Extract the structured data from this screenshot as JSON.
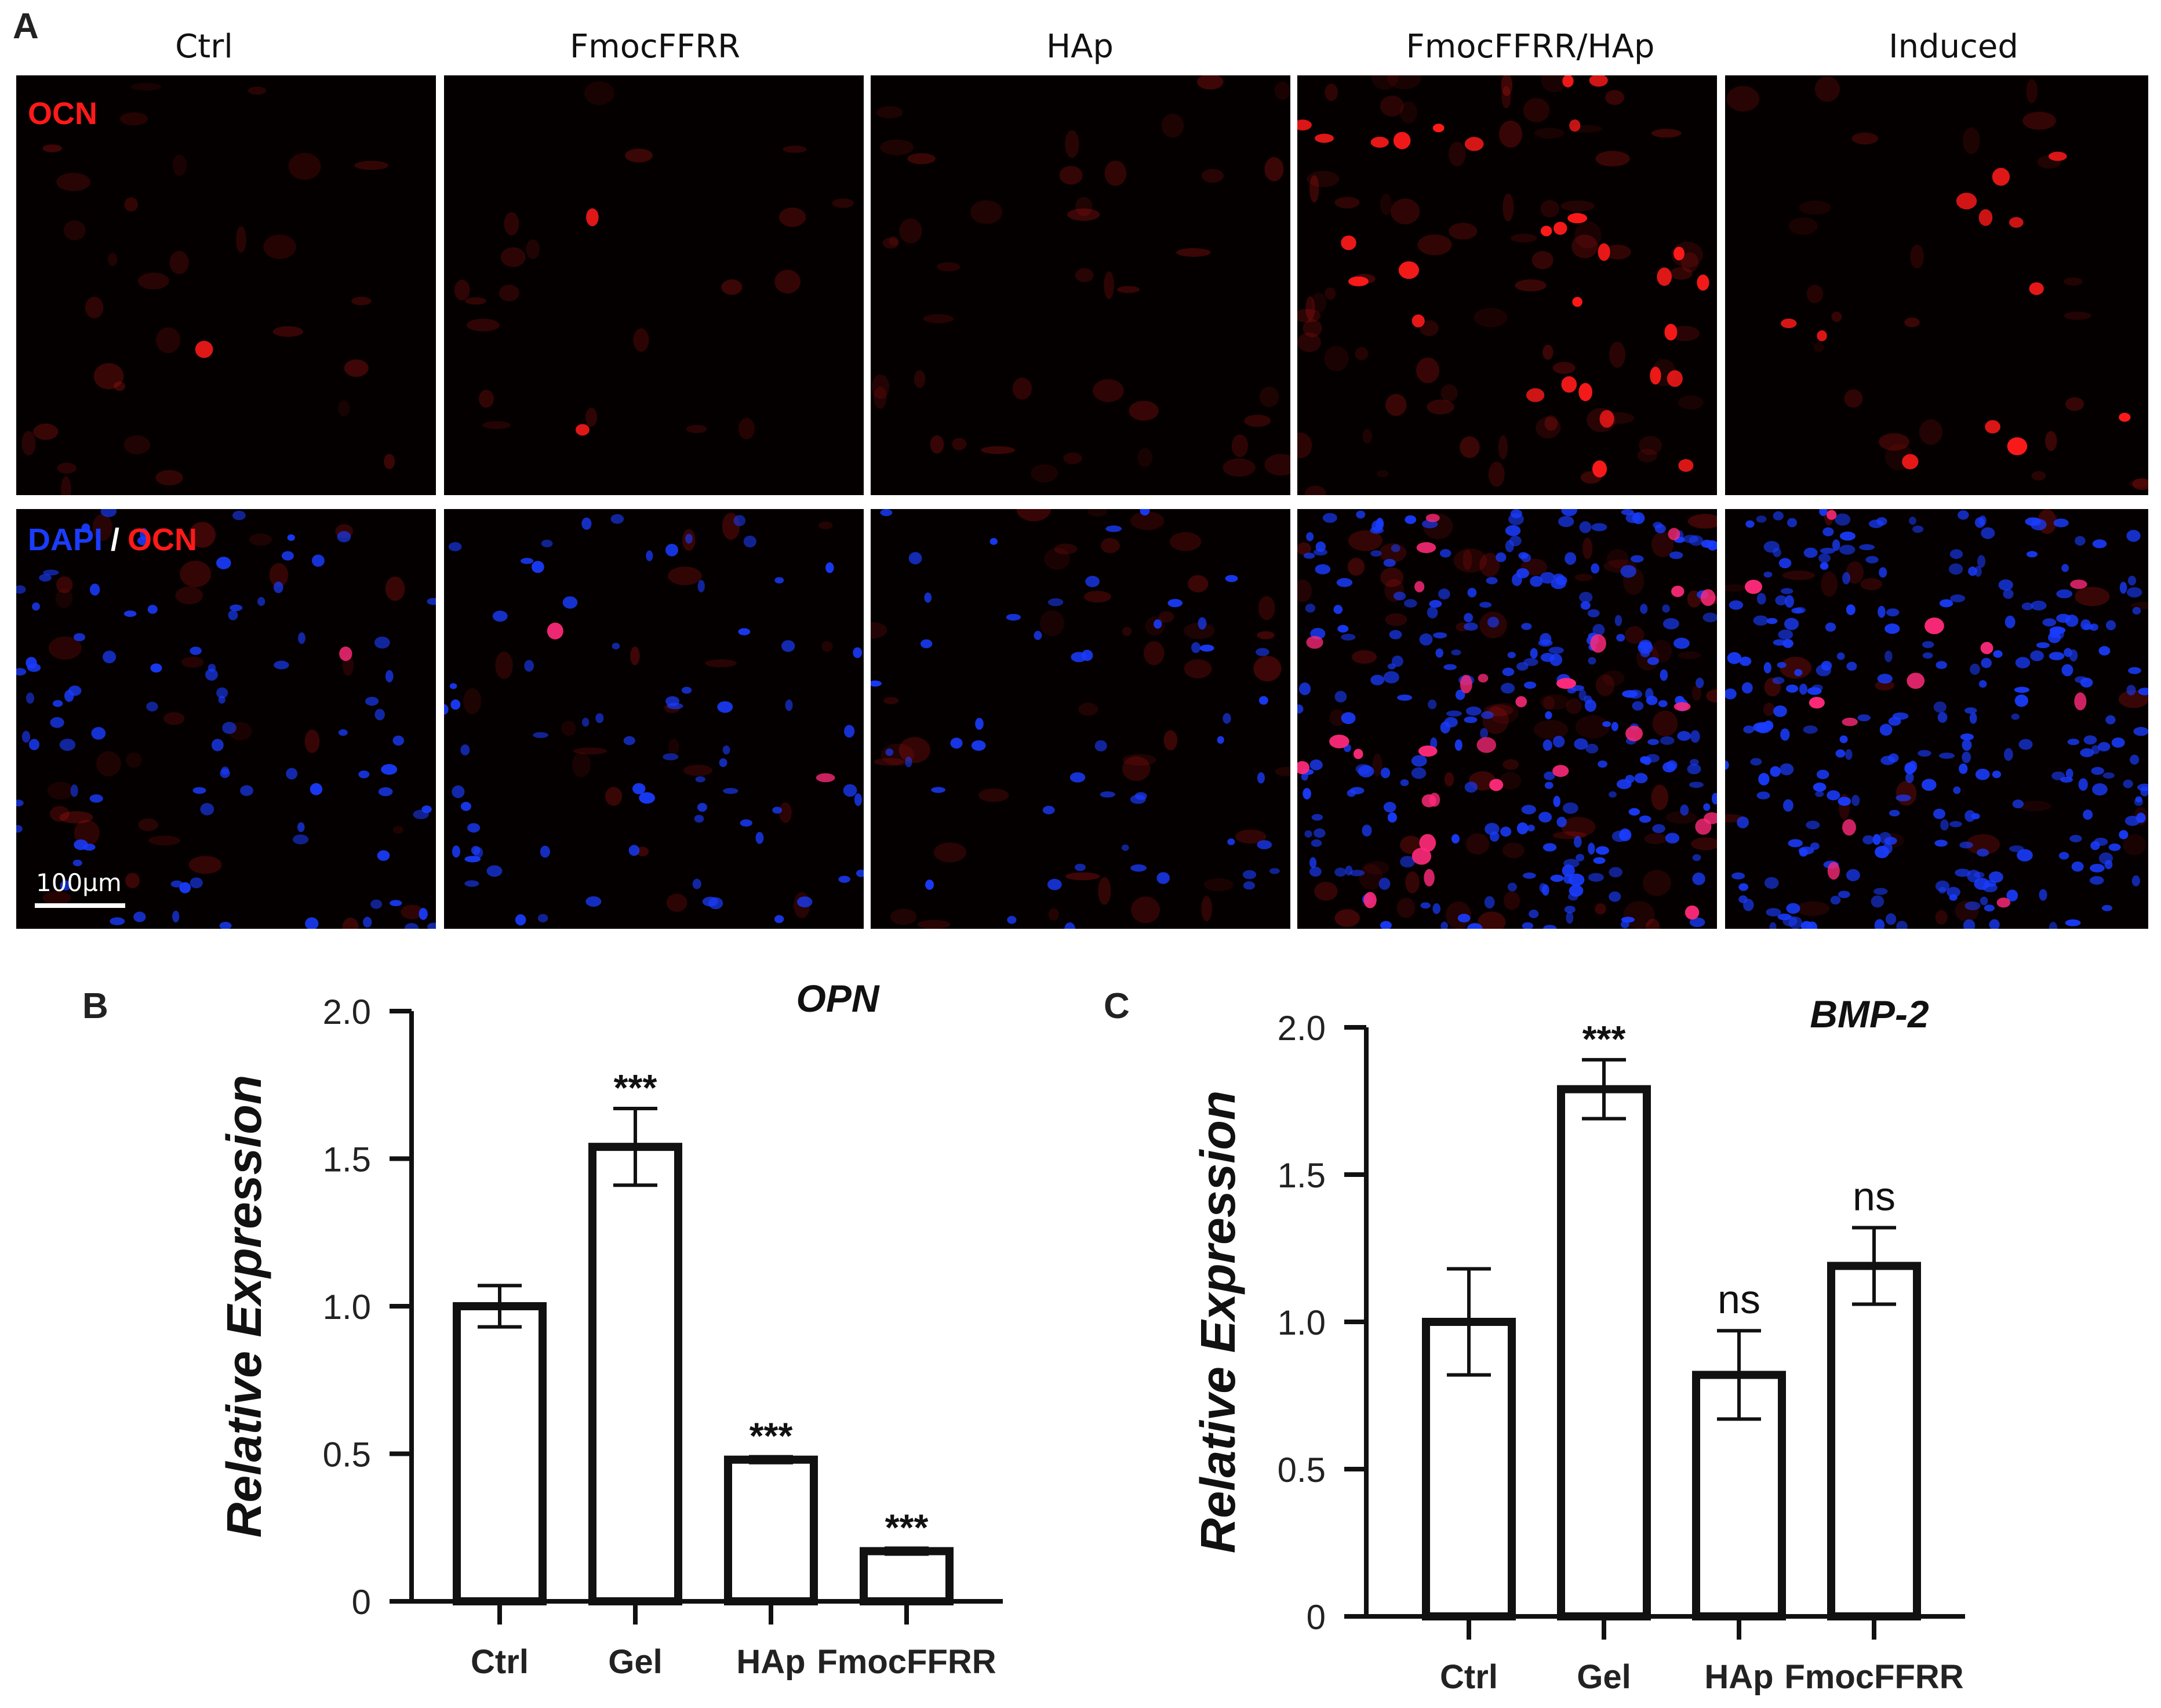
{
  "panels": {
    "a_letter": "A",
    "b_letter": "B",
    "c_letter": "C"
  },
  "micrographs": {
    "columns": [
      "Ctrl",
      "FmocFFRR",
      "HAp",
      "FmocFFRR/HAp",
      "Induced"
    ],
    "row1_label": "OCN",
    "row2_label_dapi": "DAPI",
    "row2_label_sep": "/",
    "row2_label_ocn": "OCN",
    "scale_bar": "100µm",
    "colors": {
      "ocn": "#ff1a1a",
      "dapi": "#1a3cff",
      "background": "#050000"
    }
  },
  "chart_data": [
    {
      "type": "bar",
      "title": "OPN",
      "ylabel": "Relative Expression",
      "xlabel": "",
      "categories": [
        "Ctrl",
        "Gel",
        "HAp",
        "FmocFFRR"
      ],
      "values": [
        1.0,
        1.54,
        0.48,
        0.17
      ],
      "errors": [
        0.07,
        0.13,
        0.01,
        0.01
      ],
      "annotations": [
        "",
        "***",
        "***",
        "***"
      ],
      "ylim": [
        0,
        2.0
      ],
      "yticks": [
        "0",
        "0.5",
        "1.0",
        "1.5",
        "2.0"
      ],
      "grid": false
    },
    {
      "type": "bar",
      "title": "BMP-2",
      "ylabel": "Relative Expression",
      "xlabel": "",
      "categories": [
        "Ctrl",
        "Gel",
        "HAp",
        "FmocFFRR"
      ],
      "values": [
        1.0,
        1.79,
        0.82,
        1.19
      ],
      "errors": [
        0.18,
        0.1,
        0.15,
        0.13
      ],
      "annotations": [
        "",
        "***",
        "ns",
        "ns"
      ],
      "ylim": [
        0,
        2.0
      ],
      "yticks": [
        "0",
        "0.5",
        "1.0",
        "1.5",
        "2.0"
      ],
      "grid": false
    }
  ]
}
